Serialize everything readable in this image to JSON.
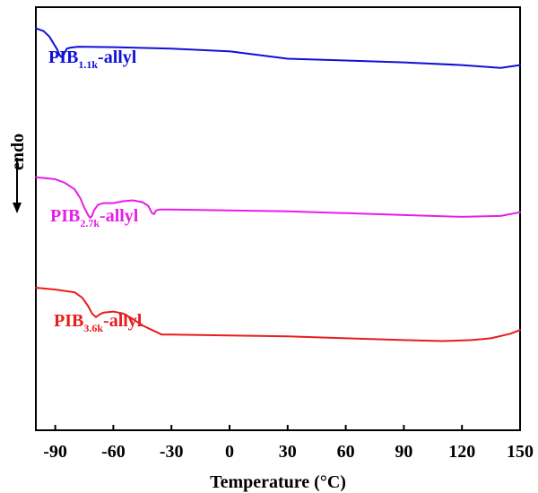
{
  "chart_data": {
    "type": "line",
    "xlabel": "Temperature (°C)",
    "ylabel": "endo",
    "ylabel_arrow": "↓",
    "xlim": [
      -100,
      150
    ],
    "xticks": [
      -90,
      -60,
      -30,
      0,
      30,
      60,
      90,
      120,
      150
    ],
    "yticks_shown": false,
    "grid": false,
    "legend": "inline-labels",
    "series": [
      {
        "name": "PIB1.1k-allyl",
        "label_main": "PIB",
        "label_sub": "1.1k",
        "label_suffix": "-allyl",
        "color": "#1010d8",
        "x": [
          -100,
          -96,
          -93,
          -91,
          -89,
          -88,
          -87,
          -86,
          -85,
          -84,
          -82,
          -78,
          -60,
          -30,
          0,
          30,
          60,
          90,
          120,
          140,
          150
        ],
        "y": [
          -0.3,
          -0.6,
          -1.2,
          -1.9,
          -2.6,
          -3.1,
          -3.4,
          -3.3,
          -2.9,
          -2.5,
          -2.4,
          -2.3,
          -2.35,
          -2.5,
          -2.8,
          -3.6,
          -3.8,
          -4.0,
          -4.3,
          -4.6,
          -4.3
        ]
      },
      {
        "name": "PIB2.7k-allyl",
        "label_main": "PIB",
        "label_sub": "2.7k",
        "label_suffix": "-allyl",
        "color": "#e61ee6",
        "x": [
          -100,
          -90,
          -85,
          -80,
          -77,
          -75,
          -73,
          -72,
          -71,
          -70,
          -68,
          -65,
          -60,
          -55,
          -50,
          -45,
          -42,
          -40,
          -39,
          -38,
          -36,
          -30,
          0,
          30,
          60,
          90,
          120,
          140,
          150
        ],
        "y": [
          -16.5,
          -16.7,
          -17.1,
          -17.8,
          -18.8,
          -19.8,
          -20.6,
          -20.9,
          -20.7,
          -20.1,
          -19.5,
          -19.3,
          -19.3,
          -19.1,
          -19.0,
          -19.2,
          -19.6,
          -20.4,
          -20.5,
          -20.1,
          -20.0,
          -20.0,
          -20.1,
          -20.2,
          -20.4,
          -20.6,
          -20.8,
          -20.7,
          -20.3
        ]
      },
      {
        "name": "PIB3.6k-allyl",
        "label_main": "PIB",
        "label_sub": "3.6k",
        "label_suffix": "-allyl",
        "color": "#e81c1c",
        "x": [
          -100,
          -90,
          -80,
          -76,
          -73,
          -71,
          -69,
          -67,
          -65,
          -60,
          -55,
          -50,
          -45,
          -40,
          -37,
          -35,
          -30,
          0,
          30,
          60,
          90,
          110,
          125,
          135,
          145,
          150
        ],
        "y": [
          -28.5,
          -28.7,
          -29.0,
          -29.6,
          -30.5,
          -31.3,
          -31.7,
          -31.4,
          -31.2,
          -31.1,
          -31.3,
          -31.9,
          -32.6,
          -33.1,
          -33.4,
          -33.6,
          -33.6,
          -33.7,
          -33.8,
          -34.0,
          -34.2,
          -34.3,
          -34.2,
          -34.0,
          -33.5,
          -33.1
        ]
      }
    ]
  }
}
